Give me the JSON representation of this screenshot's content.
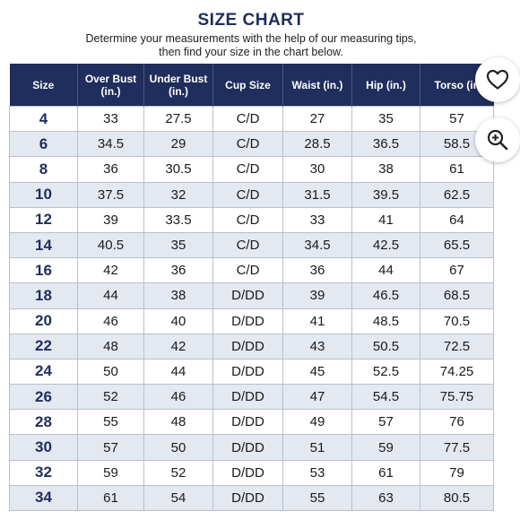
{
  "header": {
    "title": "SIZE CHART",
    "subtitle_line1": "Determine your measurements with the help of our measuring tips,",
    "subtitle_line2": "then find your size in the chart below."
  },
  "table": {
    "columns": [
      {
        "line1": "Size",
        "line2": ""
      },
      {
        "line1": "Over Bust",
        "line2": "(in.)"
      },
      {
        "line1": "Under Bust",
        "line2": "(in.)"
      },
      {
        "line1": "Cup Size",
        "line2": ""
      },
      {
        "line1": "Waist (in.)",
        "line2": ""
      },
      {
        "line1": "Hip (in.)",
        "line2": ""
      },
      {
        "line1": "Torso (in",
        "line2": ""
      }
    ],
    "rows": [
      [
        "4",
        "33",
        "27.5",
        "C/D",
        "27",
        "35",
        "57"
      ],
      [
        "6",
        "34.5",
        "29",
        "C/D",
        "28.5",
        "36.5",
        "58.5"
      ],
      [
        "8",
        "36",
        "30.5",
        "C/D",
        "30",
        "38",
        "61"
      ],
      [
        "10",
        "37.5",
        "32",
        "C/D",
        "31.5",
        "39.5",
        "62.5"
      ],
      [
        "12",
        "39",
        "33.5",
        "C/D",
        "33",
        "41",
        "64"
      ],
      [
        "14",
        "40.5",
        "35",
        "C/D",
        "34.5",
        "42.5",
        "65.5"
      ],
      [
        "16",
        "42",
        "36",
        "C/D",
        "36",
        "44",
        "67"
      ],
      [
        "18",
        "44",
        "38",
        "D/DD",
        "39",
        "46.5",
        "68.5"
      ],
      [
        "20",
        "46",
        "40",
        "D/DD",
        "41",
        "48.5",
        "70.5"
      ],
      [
        "22",
        "48",
        "42",
        "D/DD",
        "43",
        "50.5",
        "72.5"
      ],
      [
        "24",
        "50",
        "44",
        "D/DD",
        "45",
        "52.5",
        "74.25"
      ],
      [
        "26",
        "52",
        "46",
        "D/DD",
        "47",
        "54.5",
        "75.75"
      ],
      [
        "28",
        "55",
        "48",
        "D/DD",
        "49",
        "57",
        "76"
      ],
      [
        "30",
        "57",
        "50",
        "D/DD",
        "51",
        "59",
        "77.5"
      ],
      [
        "32",
        "59",
        "52",
        "D/DD",
        "53",
        "61",
        "79"
      ],
      [
        "34",
        "61",
        "54",
        "D/DD",
        "55",
        "63",
        "80.5"
      ]
    ]
  },
  "actions": {
    "like_icon": "heart-icon",
    "zoom_icon": "zoom-in-icon"
  },
  "colors": {
    "header_bg": "#1f2e5c",
    "stripe_bg": "#e4e8f0",
    "size_text": "#1f2e5c"
  }
}
